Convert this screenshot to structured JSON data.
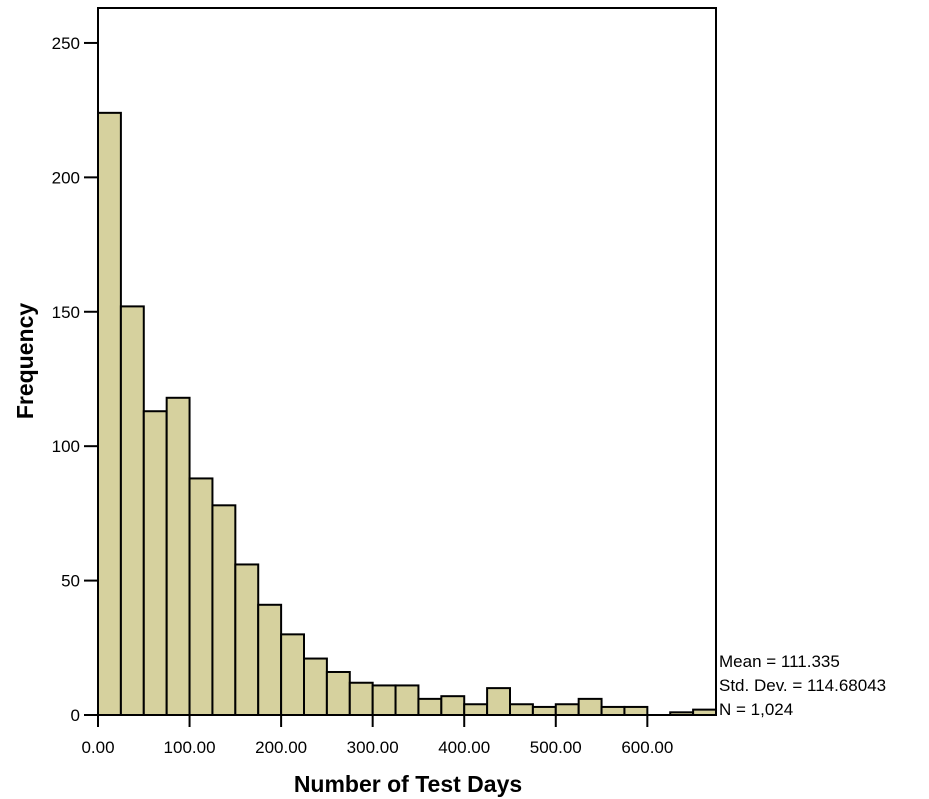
{
  "chart_data": {
    "type": "bar",
    "subtype": "histogram",
    "xlabel": "Number of Test Days",
    "ylabel": "Frequency",
    "x_ticks": [
      "0.00",
      "100.00",
      "200.00",
      "300.00",
      "400.00",
      "500.00",
      "600.00"
    ],
    "x_tick_values": [
      0,
      100,
      200,
      300,
      400,
      500,
      600
    ],
    "y_ticks": [
      "0",
      "50",
      "100",
      "150",
      "200",
      "250"
    ],
    "y_tick_values": [
      0,
      50,
      100,
      150,
      200,
      250
    ],
    "xlim": [
      0,
      675
    ],
    "ylim": [
      0,
      263
    ],
    "bin_width": 25,
    "bins": [
      {
        "start": 0,
        "end": 25,
        "count": 224
      },
      {
        "start": 25,
        "end": 50,
        "count": 152
      },
      {
        "start": 50,
        "end": 75,
        "count": 113
      },
      {
        "start": 75,
        "end": 100,
        "count": 118
      },
      {
        "start": 100,
        "end": 125,
        "count": 88
      },
      {
        "start": 125,
        "end": 150,
        "count": 78
      },
      {
        "start": 150,
        "end": 175,
        "count": 56
      },
      {
        "start": 175,
        "end": 200,
        "count": 41
      },
      {
        "start": 200,
        "end": 225,
        "count": 30
      },
      {
        "start": 225,
        "end": 250,
        "count": 21
      },
      {
        "start": 250,
        "end": 275,
        "count": 16
      },
      {
        "start": 275,
        "end": 300,
        "count": 12
      },
      {
        "start": 300,
        "end": 325,
        "count": 11
      },
      {
        "start": 325,
        "end": 350,
        "count": 11
      },
      {
        "start": 350,
        "end": 375,
        "count": 6
      },
      {
        "start": 375,
        "end": 400,
        "count": 7
      },
      {
        "start": 400,
        "end": 425,
        "count": 4
      },
      {
        "start": 425,
        "end": 450,
        "count": 10
      },
      {
        "start": 450,
        "end": 475,
        "count": 4
      },
      {
        "start": 475,
        "end": 500,
        "count": 3
      },
      {
        "start": 500,
        "end": 525,
        "count": 4
      },
      {
        "start": 525,
        "end": 550,
        "count": 6
      },
      {
        "start": 550,
        "end": 575,
        "count": 3
      },
      {
        "start": 575,
        "end": 600,
        "count": 3
      },
      {
        "start": 600,
        "end": 625,
        "count": 0
      },
      {
        "start": 625,
        "end": 650,
        "count": 1
      },
      {
        "start": 650,
        "end": 675,
        "count": 2
      }
    ],
    "bar_color": "#d6d19e",
    "bar_edge_color": "#000000",
    "grid": false,
    "stats": {
      "mean": "Mean = 111.335",
      "std_dev": "Std. Dev. = 114.68043",
      "n": "N = 1,024"
    }
  }
}
